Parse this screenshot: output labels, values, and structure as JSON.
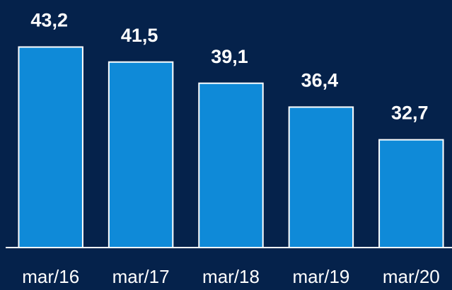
{
  "chart_data": {
    "type": "bar",
    "categories": [
      "mar/16",
      "mar/17",
      "mar/18",
      "mar/19",
      "mar/20"
    ],
    "values": [
      43.2,
      41.5,
      39.1,
      36.4,
      32.7
    ],
    "value_labels": [
      "43,2",
      "41,5",
      "39,1",
      "36,4",
      "32,7"
    ],
    "color": "#0f8ad8",
    "ylim": [
      20.5,
      45
    ]
  }
}
